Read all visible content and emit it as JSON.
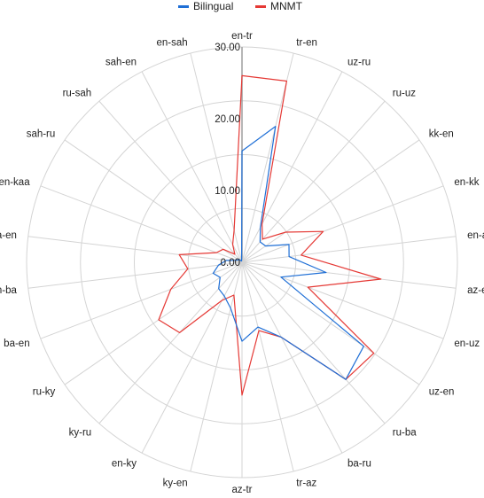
{
  "chart_data": {
    "type": "radar",
    "title": "",
    "categories": [
      "en-tr",
      "tr-en",
      "uz-ru",
      "ru-uz",
      "kk-en",
      "en-kk",
      "en-az",
      "az-en",
      "en-uz",
      "uz-en",
      "ru-ba",
      "ba-ru",
      "tr-az",
      "az-tr",
      "ky-en",
      "en-ky",
      "ky-ru",
      "ru-ky",
      "ba-en",
      "en-ba",
      "kaa-en",
      "en-kaa",
      "sah-ru",
      "ru-sah",
      "sah-en",
      "en-sah"
    ],
    "series": [
      {
        "name": "Bilingual",
        "color": "#1f6fd6",
        "values": [
          15.5,
          19.5,
          5.5,
          3.8,
          4.0,
          7.0,
          6.6,
          11.8,
          5.8,
          20.6,
          21.8,
          11.8,
          9.3,
          11.0,
          6.6,
          5.3,
          4.9,
          3.7,
          4.3,
          3.3,
          2.2,
          0.8,
          0.6,
          0.5,
          0.2,
          0.2
        ]
      },
      {
        "name": "MNMT",
        "color": "#e53935",
        "values": [
          26.0,
          26.0,
          6.0,
          4.3,
          7.4,
          12.1,
          8.3,
          19.5,
          9.8,
          22.3,
          21.8,
          11.8,
          9.8,
          18.5,
          4.7,
          6.0,
          13.1,
          14.1,
          10.6,
          7.6,
          8.8,
          3.8,
          3.2,
          1.5,
          2.8,
          4.6
        ]
      }
    ],
    "rlim": [
      0,
      30
    ],
    "ticks": [
      0,
      10,
      20,
      30
    ],
    "tick_labels": [
      "0.00",
      "10.00",
      "20.00",
      "30.00"
    ],
    "grid": true,
    "legend_position": "top-center"
  },
  "legend": {
    "bilingual_label": "Bilingual",
    "mnmt_label": "MNMT"
  }
}
